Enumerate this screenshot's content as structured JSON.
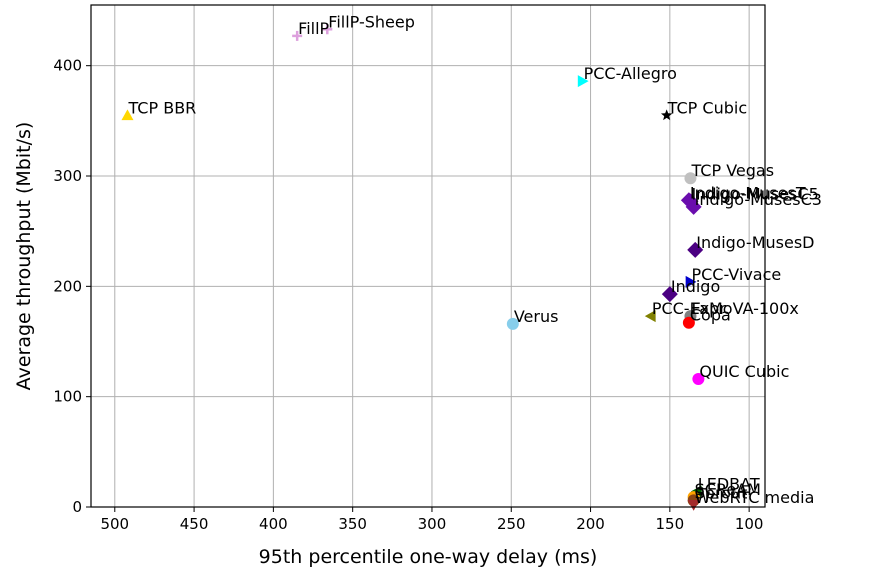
{
  "chart_data": {
    "type": "scatter",
    "xlabel": "95th percentile one-way delay (ms)",
    "ylabel": "Average throughput (Mbit/s)",
    "xlim": [
      515,
      90
    ],
    "ylim": [
      0,
      455
    ],
    "x_inverted": true,
    "xticks": [
      500,
      450,
      400,
      350,
      300,
      250,
      200,
      150,
      100
    ],
    "yticks": [
      0,
      100,
      200,
      300,
      400
    ],
    "grid": true,
    "points": [
      {
        "label": "FillP",
        "x": 385,
        "y": 427,
        "marker": "plus",
        "color": "#dda0dd"
      },
      {
        "label": "FillP-Sheep",
        "x": 366,
        "y": 433,
        "marker": "plus",
        "color": "#dda0dd"
      },
      {
        "label": "PCC-Allegro",
        "x": 205,
        "y": 386,
        "marker": "triangle-right",
        "color": "#00ffff"
      },
      {
        "label": "TCP BBR",
        "x": 492,
        "y": 355,
        "marker": "triangle-up",
        "color": "#ffd700"
      },
      {
        "label": "TCP Cubic",
        "x": 152,
        "y": 355,
        "marker": "star",
        "color": "#000000"
      },
      {
        "label": "TCP Vegas",
        "x": 137,
        "y": 298,
        "marker": "circle",
        "color": "#c0c0c0"
      },
      {
        "label": "Indigo-MusesT",
        "x": 138,
        "y": 278,
        "marker": "diamond",
        "color": "#6a0dad"
      },
      {
        "label": "Indigo-MusesC5",
        "x": 137,
        "y": 277,
        "marker": "diamond",
        "color": "#6a0dad"
      },
      {
        "label": "Indigo-MusesC3",
        "x": 135,
        "y": 272,
        "marker": "diamond",
        "color": "#6a0dad"
      },
      {
        "label": "Indigo-MusesD",
        "x": 134,
        "y": 233,
        "marker": "diamond",
        "color": "#4b0082"
      },
      {
        "label": "PCC-Vivace",
        "x": 137,
        "y": 204,
        "marker": "triangle-right",
        "color": "#0000cd"
      },
      {
        "label": "Indigo",
        "x": 150,
        "y": 193,
        "marker": "diamond",
        "color": "#4b0082"
      },
      {
        "label": "PCC-Expr",
        "x": 162,
        "y": 173,
        "marker": "triangle-left",
        "color": "#808000"
      },
      {
        "label": "FaMoVA-100x",
        "x": 137,
        "y": 173,
        "marker": "circle",
        "color": "#808080"
      },
      {
        "label": "Copa",
        "x": 138,
        "y": 167,
        "marker": "circle",
        "color": "#ff0000"
      },
      {
        "label": "Verus",
        "x": 249,
        "y": 166,
        "marker": "circle",
        "color": "#87ceeb"
      },
      {
        "label": "QUIC Cubic",
        "x": 132,
        "y": 116,
        "marker": "circle",
        "color": "#ff00ff"
      },
      {
        "label": "LEDBAT",
        "x": 133,
        "y": 14,
        "marker": "triangle-left",
        "color": "#006400"
      },
      {
        "label": "SCReAM",
        "x": 135,
        "y": 9,
        "marker": "circle",
        "color": "#ffa500"
      },
      {
        "label": "Sprout",
        "x": 135,
        "y": 6,
        "marker": "circle",
        "color": "#8b4513"
      },
      {
        "label": "WebRTC media",
        "x": 135,
        "y": 2,
        "marker": "triangle-down",
        "color": "#a52a2a"
      }
    ]
  }
}
